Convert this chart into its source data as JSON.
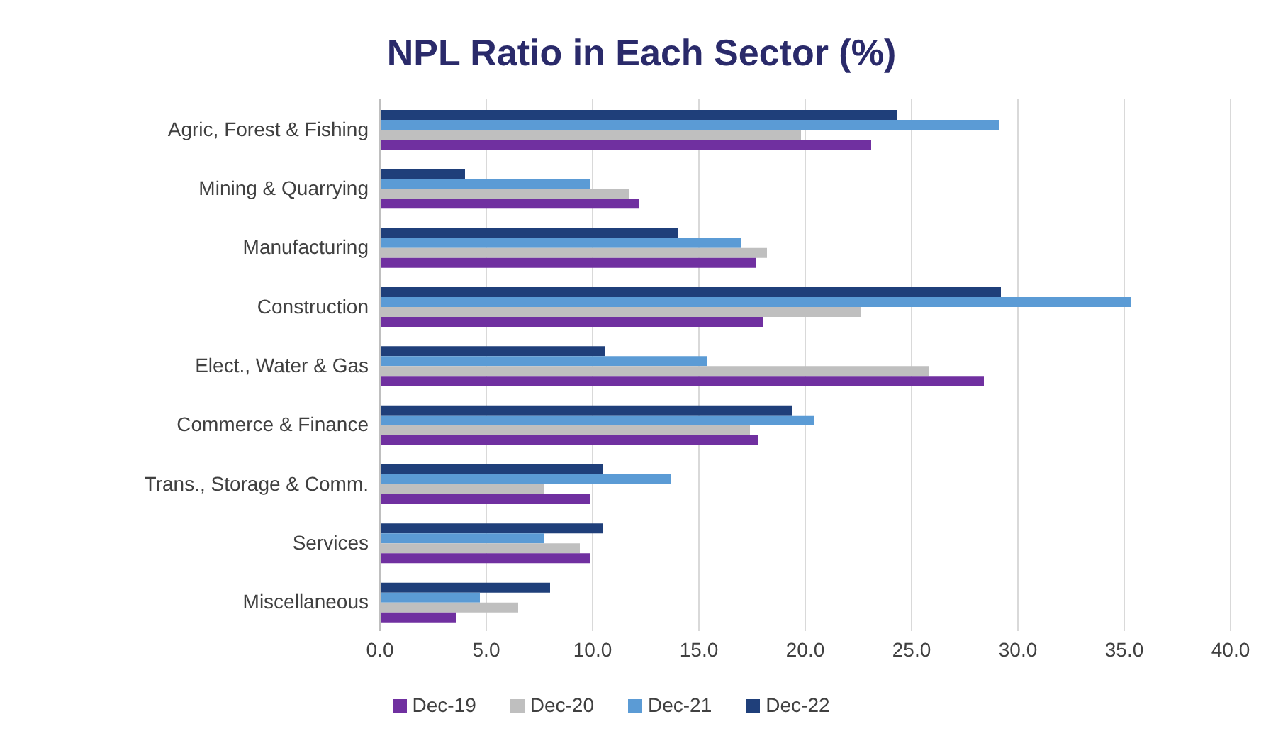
{
  "chart_data": {
    "type": "bar",
    "orientation": "horizontal",
    "title": "NPL Ratio in Each Sector (%)",
    "categories": [
      "Agric, Forest & Fishing",
      "Mining & Quarrying",
      "Manufacturing",
      "Construction",
      "Elect., Water & Gas",
      "Commerce & Finance",
      "Trans., Storage & Comm.",
      "Services",
      "Miscellaneous"
    ],
    "series": [
      {
        "name": "Dec-22",
        "color": "#1f3f7a",
        "values": [
          24.3,
          4.0,
          14.0,
          29.2,
          10.6,
          19.4,
          10.5,
          10.5,
          8.0
        ]
      },
      {
        "name": "Dec-21",
        "color": "#5b9bd5",
        "values": [
          29.1,
          9.9,
          17.0,
          35.3,
          15.4,
          20.4,
          13.7,
          7.7,
          4.7
        ]
      },
      {
        "name": "Dec-20",
        "color": "#bfbfbf",
        "values": [
          19.8,
          11.7,
          18.2,
          22.6,
          25.8,
          17.4,
          7.7,
          9.4,
          6.5
        ]
      },
      {
        "name": "Dec-19",
        "color": "#7030a0",
        "values": [
          23.1,
          12.2,
          17.7,
          18.0,
          28.4,
          17.8,
          9.9,
          9.9,
          3.6
        ]
      }
    ],
    "xlim": [
      0,
      40
    ],
    "xticks": [
      {
        "value": 0,
        "label": "0.0"
      },
      {
        "value": 5,
        "label": "5.0"
      },
      {
        "value": 10,
        "label": "10.0"
      },
      {
        "value": 15,
        "label": "15.0"
      },
      {
        "value": 20,
        "label": "20.0"
      },
      {
        "value": 25,
        "label": "25.0"
      },
      {
        "value": 30,
        "label": "30.0"
      },
      {
        "value": 35,
        "label": "35.0"
      },
      {
        "value": 40,
        "label": "40.0"
      }
    ],
    "grid": "x",
    "legend": "bottom"
  }
}
